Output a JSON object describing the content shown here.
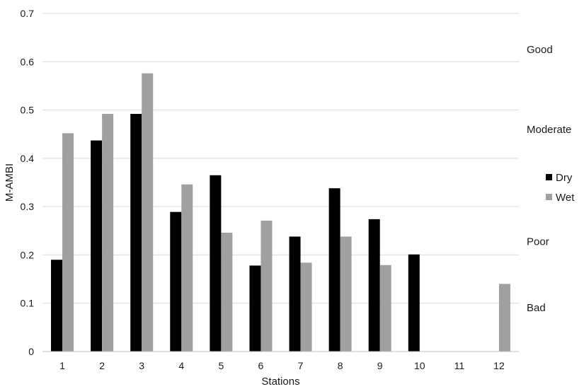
{
  "chart_data": {
    "type": "bar",
    "xlabel": "Stations",
    "ylabel": "M-AMBI",
    "ylim": [
      0,
      0.7
    ],
    "yticks": [
      "0",
      "0.1",
      "0.2",
      "0.3",
      "0.4",
      "0.5",
      "0.6",
      "0.7"
    ],
    "categories": [
      "1",
      "2",
      "3",
      "4",
      "5",
      "6",
      "7",
      "8",
      "9",
      "10",
      "11",
      "12"
    ],
    "series": [
      {
        "name": "Dry",
        "color": "#000000",
        "values": [
          0.19,
          0.437,
          0.492,
          0.289,
          0.365,
          0.178,
          0.238,
          0.338,
          0.274,
          0.201,
          0,
          0
        ]
      },
      {
        "name": "Wet",
        "color": "#a0a0a0",
        "values": [
          0.452,
          0.492,
          0.576,
          0.346,
          0.246,
          0.271,
          0.184,
          0.238,
          0.179,
          0,
          0,
          0.14
        ]
      }
    ],
    "grid": true,
    "legend": "right",
    "zones": [
      {
        "label": "Good",
        "value": 0.625
      },
      {
        "label": "Moderate",
        "value": 0.46
      },
      {
        "label": "Poor",
        "value": 0.228
      },
      {
        "label": "Bad",
        "value": 0.091
      }
    ]
  }
}
